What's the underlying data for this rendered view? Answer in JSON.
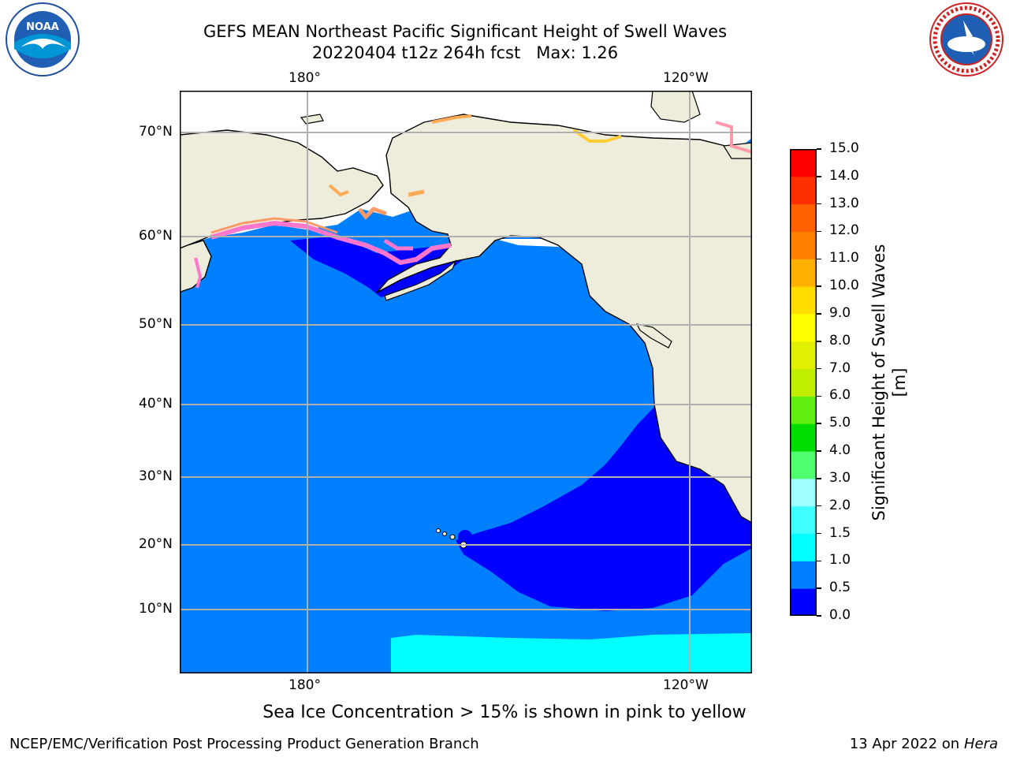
{
  "header": {
    "title": "GEFS MEAN Northeast Pacific Significant Height of Swell Waves",
    "subtitle": "20220404 t12z 264h fcst   Max: 1.26"
  },
  "logos": {
    "left_icon": "noaa-logo-icon",
    "right_icon": "nws-logo-icon"
  },
  "map": {
    "top_lon_labels": [
      "180°",
      "120°W"
    ],
    "bottom_lon_labels": [
      "180°",
      "120°W"
    ],
    "lat_labels": [
      "70°N",
      "60°N",
      "50°N",
      "40°N",
      "30°N",
      "20°N",
      "10°N"
    ],
    "colors": {
      "ocean_low": "#0000ff",
      "ocean_mid": "#0080ff",
      "ocean_cyan": "#00ffff",
      "land": "#eeeddc",
      "ice": "#ffffff"
    }
  },
  "colorbar": {
    "title": "Significant Height of Swell Waves [m]",
    "ticks": [
      "0.0",
      "0.5",
      "1.0",
      "1.5",
      "2.0",
      "3.0",
      "4.0",
      "5.0",
      "6.0",
      "7.0",
      "8.0",
      "9.0",
      "10.0",
      "11.0",
      "12.0",
      "13.0",
      "14.0",
      "15.0"
    ],
    "colors": [
      "#0000ff",
      "#0080ff",
      "#00ffff",
      "#40ffff",
      "#a0ffff",
      "#50ff70",
      "#00dd00",
      "#60ee10",
      "#c0ee00",
      "#e0f000",
      "#ffff00",
      "#ffdd00",
      "#ffb000",
      "#ff8000",
      "#ff6000",
      "#ff3000",
      "#ff0000"
    ]
  },
  "footer": {
    "note": "Sea Ice Concentration > 15% is shown in pink to yellow",
    "left": "NCEP/EMC/Verification Post Processing Product Generation Branch",
    "right_date": "13 Apr 2022 on ",
    "right_host": "Hera"
  }
}
